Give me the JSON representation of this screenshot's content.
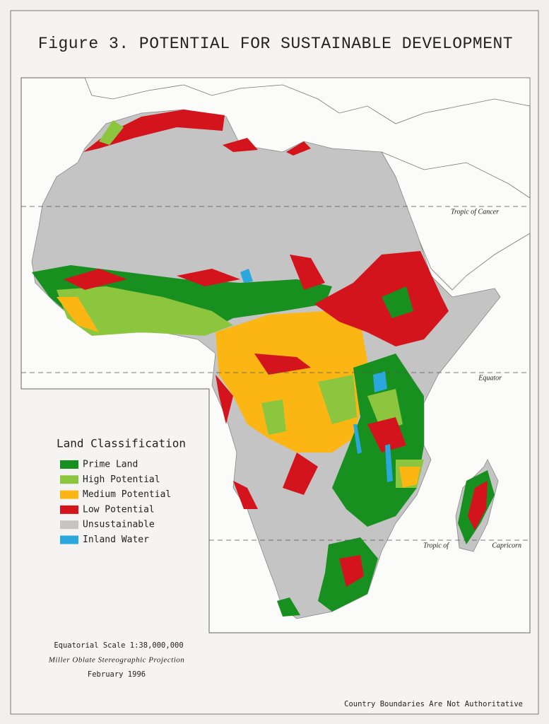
{
  "title": "Figure 3. POTENTIAL FOR SUSTAINABLE DEVELOPMENT",
  "legend": {
    "title": "Land Classification",
    "items": [
      {
        "label": "Prime Land",
        "color": "#17901f"
      },
      {
        "label": "High Potential",
        "color": "#8cc63f"
      },
      {
        "label": "Medium Potential",
        "color": "#fbb613"
      },
      {
        "label": "Low Potential",
        "color": "#d4141c"
      },
      {
        "label": "Unsustainable",
        "color": "#c4c4c4"
      },
      {
        "label": "Inland Water",
        "color": "#2aa7dc"
      }
    ]
  },
  "map_labels": {
    "tropic_of_cancer": "Tropic of Cancer",
    "equator": "Equator",
    "tropic_of_capricorn_left": "Tropic of",
    "tropic_of_capricorn_right": "Capricorn"
  },
  "footer": {
    "scale": "Equatorial Scale 1:38,000,000",
    "projection": "Miller Oblate Stereographic Projection",
    "date": "February 1996",
    "disclaimer": "Country Boundaries Are Not Authoritative"
  }
}
